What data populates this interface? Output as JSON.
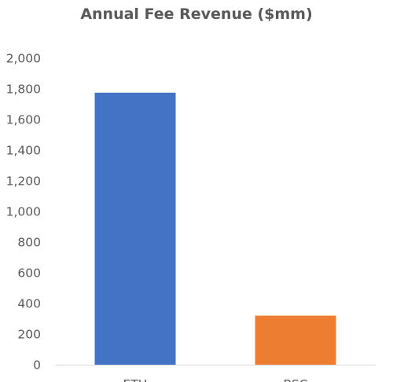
{
  "chart_data": {
    "type": "bar",
    "title": "Annual Fee Revenue ($mm)",
    "xlabel": "",
    "ylabel": "",
    "categories": [
      "ETH",
      "BSC"
    ],
    "values": [
      1775,
      320
    ],
    "colors": [
      "#4472C4",
      "#ED7D31"
    ],
    "ylim": [
      0,
      2000
    ],
    "yticks": [
      0,
      200,
      400,
      600,
      800,
      1000,
      1200,
      1400,
      1600,
      1800,
      2000
    ],
    "ytick_labels": [
      "0",
      "200",
      "400",
      "600",
      "800",
      "1,000",
      "1,200",
      "1,400",
      "1,600",
      "1,800",
      "2,000"
    ],
    "grid": false,
    "legend": "none"
  }
}
